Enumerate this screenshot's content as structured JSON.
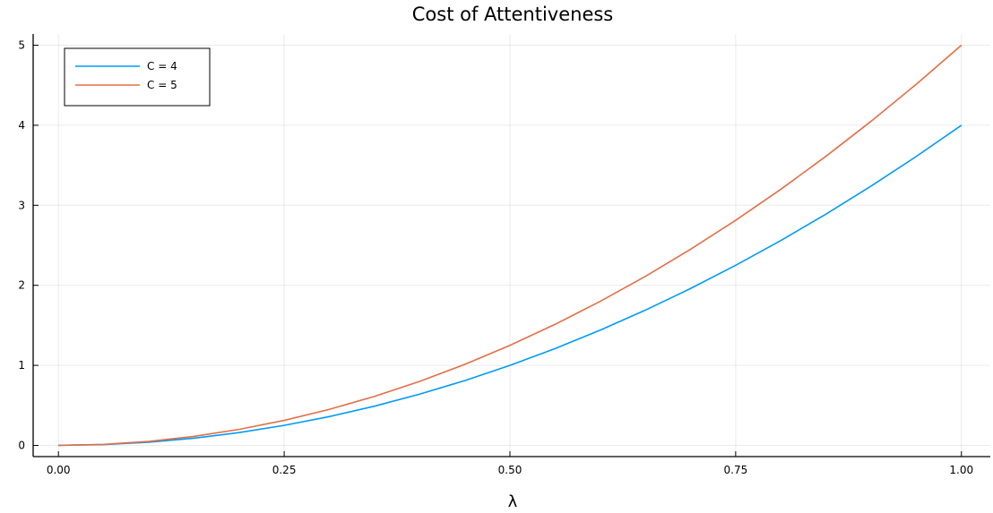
{
  "chart_data": {
    "type": "line",
    "title": "Cost of Attentiveness",
    "xlabel": "λ",
    "ylabel": "",
    "xlim": [
      -0.028,
      1.032
    ],
    "ylim": [
      -0.14,
      5.14
    ],
    "xticks": [
      0.0,
      0.25,
      0.5,
      0.75,
      1.0
    ],
    "xtick_labels": [
      "0.00",
      "0.25",
      "0.50",
      "0.75",
      "1.00"
    ],
    "yticks": [
      0,
      1,
      2,
      3,
      4,
      5
    ],
    "ytick_labels": [
      "0",
      "1",
      "2",
      "3",
      "4",
      "5"
    ],
    "grid": true,
    "legend_position": "top-left",
    "x": [
      0.0,
      0.05,
      0.1,
      0.15,
      0.2,
      0.25,
      0.3,
      0.35,
      0.4,
      0.45,
      0.5,
      0.55,
      0.6,
      0.65,
      0.7,
      0.75,
      0.8,
      0.85,
      0.9,
      0.95,
      1.0
    ],
    "series": [
      {
        "name": "C = 4",
        "color": "#009af9",
        "values": [
          0.0,
          0.01,
          0.04,
          0.09,
          0.16,
          0.25,
          0.36,
          0.49,
          0.64,
          0.81,
          1.0,
          1.21,
          1.44,
          1.69,
          1.96,
          2.25,
          2.56,
          2.89,
          3.24,
          3.61,
          4.0
        ]
      },
      {
        "name": "C = 5",
        "color": "#e26f46",
        "values": [
          0.0,
          0.0125,
          0.05,
          0.1125,
          0.2,
          0.3125,
          0.45,
          0.6125,
          0.8,
          1.0125,
          1.25,
          1.5125,
          1.8,
          2.1125,
          2.45,
          2.8125,
          3.2,
          3.6125,
          4.05,
          4.5125,
          5.0
        ]
      }
    ]
  }
}
